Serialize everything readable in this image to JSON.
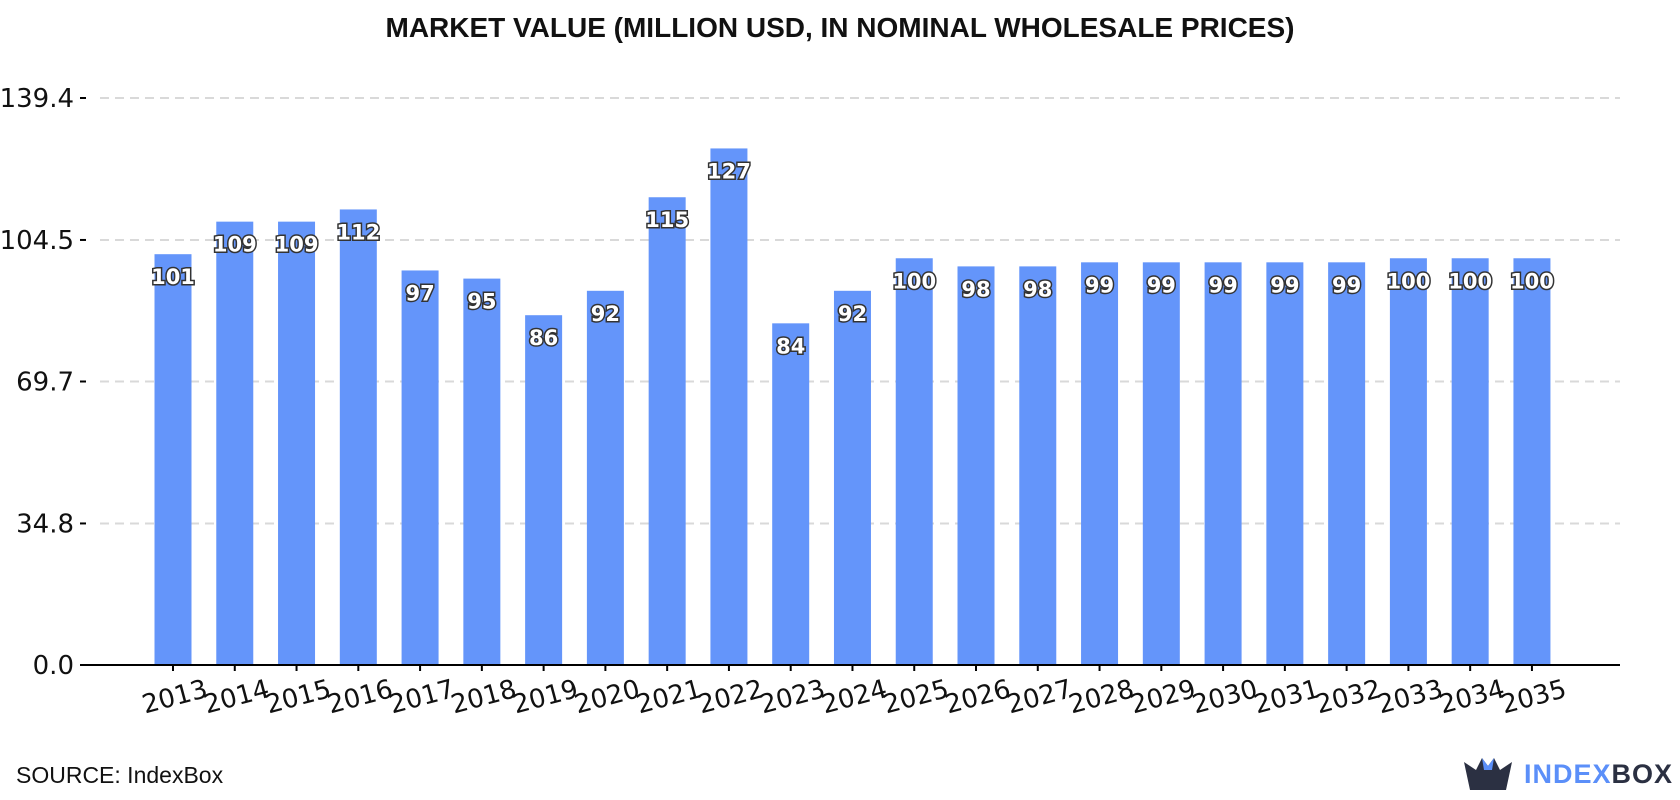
{
  "title": "MARKET VALUE (MILLION USD, IN NOMINAL WHOLESALE PRICES)",
  "source": "SOURCE: IndexBox",
  "brand": {
    "part1": "INDEX",
    "part2": "BOX",
    "icon": "indexbox-crown-icon"
  },
  "colors": {
    "bar": "#6495fa",
    "grid": "#d9d9d9",
    "axis": "#000000",
    "brand_accent": "#5b8ff9",
    "brand_dark": "#2b3042"
  },
  "chart_data": {
    "type": "bar",
    "title": "MARKET VALUE (MILLION USD, IN NOMINAL WHOLESALE PRICES)",
    "xlabel": "",
    "ylabel": "",
    "categories": [
      "2013",
      "2014",
      "2015",
      "2016",
      "2017",
      "2018",
      "2019",
      "2020",
      "2021",
      "2022",
      "2023",
      "2024",
      "2025",
      "2026",
      "2027",
      "2028",
      "2029",
      "2030",
      "2031",
      "2032",
      "2033",
      "2034",
      "2035"
    ],
    "values": [
      101,
      109,
      109,
      112,
      97,
      95,
      86,
      92,
      115,
      127,
      84,
      92,
      100,
      98,
      98,
      99,
      99,
      99,
      99,
      99,
      100,
      100,
      100
    ],
    "value_labels": [
      "101",
      "109",
      "109",
      "112",
      "97",
      "95",
      "86",
      "92",
      "115",
      "127",
      "84",
      "92",
      "100",
      "98",
      "98",
      "99",
      "99",
      "99",
      "99",
      "99",
      "100",
      "100",
      "100"
    ],
    "yticks": [
      "0.0",
      "34.8",
      "69.7",
      "104.5",
      "139.4"
    ],
    "ylim": [
      0,
      139.4
    ],
    "grid": "horizontal-dashed",
    "legend": "none"
  }
}
